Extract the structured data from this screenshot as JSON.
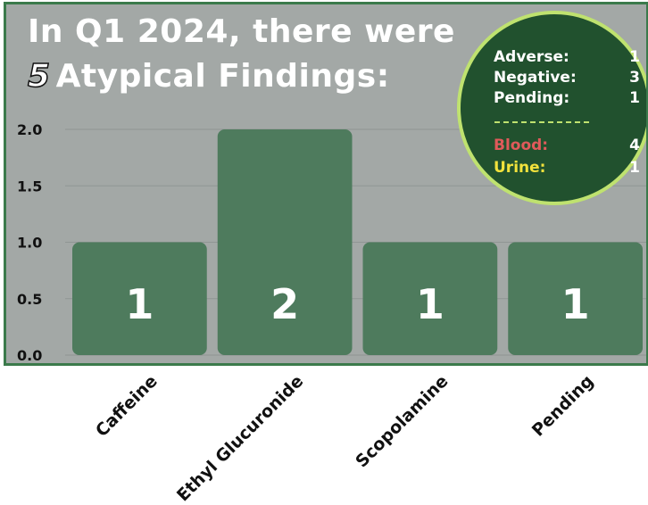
{
  "headline": {
    "line1": "In Q1 2024, there were",
    "count": "5",
    "line2_rest": "Atypical Findings:"
  },
  "summary": {
    "rows": [
      {
        "label": "Adverse:",
        "value": "1",
        "color": "#ffffff"
      },
      {
        "label": "Negative:",
        "value": "3",
        "color": "#ffffff"
      },
      {
        "label": "Pending:",
        "value": "1",
        "color": "#ffffff"
      }
    ],
    "divider": "-----------",
    "rows2": [
      {
        "label": "Blood:",
        "value": "4",
        "color": "#e05a5a"
      },
      {
        "label": "Urine:",
        "value": "1",
        "color": "#f2e23c"
      }
    ]
  },
  "colors": {
    "panel_bg": "#a3a8a6",
    "bar": "#4e7b5d",
    "border": "#3b7a4b",
    "circle": "#21512e",
    "circle_ring": "#bfe26f"
  },
  "chart_data": {
    "type": "bar",
    "categories": [
      "Caffeine",
      "Ethyl Glucuronide",
      "Scopolamine",
      "Pending"
    ],
    "values": [
      1,
      2,
      1,
      1
    ],
    "data_labels": [
      "1",
      "2",
      "1",
      "1"
    ],
    "ylim": [
      0,
      2.0
    ],
    "yticks": [
      "0.0",
      "0.5",
      "1.0",
      "1.5",
      "2.0"
    ],
    "grid": true
  }
}
